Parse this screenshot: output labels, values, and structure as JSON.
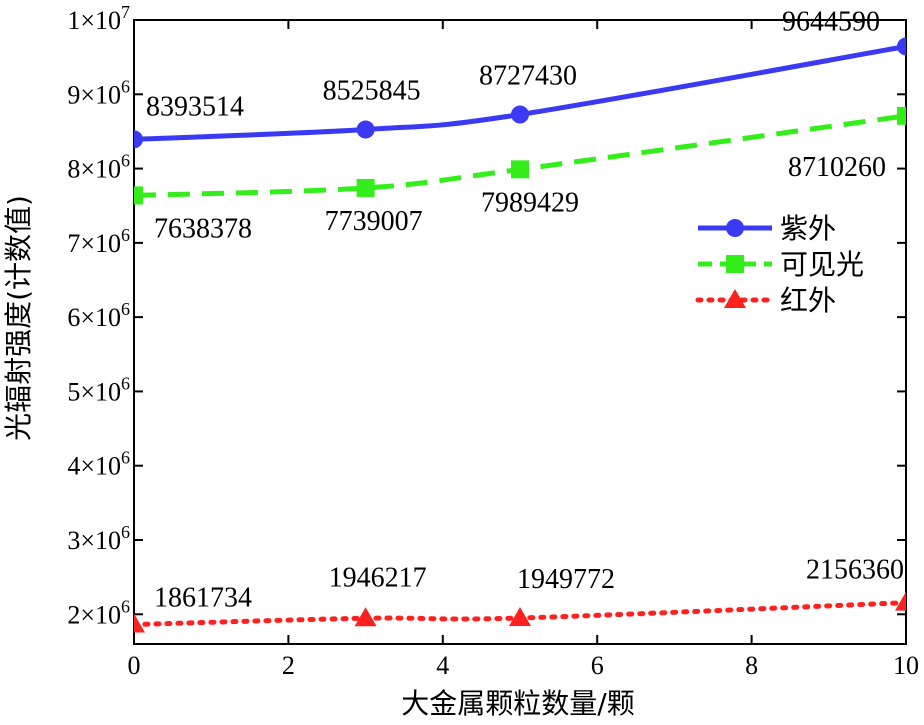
{
  "chart_data": {
    "type": "line",
    "xlabel": "大金属颗粒数量/颗",
    "ylabel": "光辐射强度(计数值)",
    "xlim": [
      0,
      10
    ],
    "ylim": [
      1600000,
      10000000
    ],
    "x_ticks": [
      {
        "value": 0,
        "label": "0"
      },
      {
        "value": 2,
        "label": "2"
      },
      {
        "value": 4,
        "label": "4"
      },
      {
        "value": 6,
        "label": "6"
      },
      {
        "value": 8,
        "label": "8"
      },
      {
        "value": 10,
        "label": "10"
      }
    ],
    "y_ticks": [
      {
        "value": 2000000,
        "base": "2×10",
        "exp": "6"
      },
      {
        "value": 3000000,
        "base": "3×10",
        "exp": "6"
      },
      {
        "value": 4000000,
        "base": "4×10",
        "exp": "6"
      },
      {
        "value": 5000000,
        "base": "5×10",
        "exp": "6"
      },
      {
        "value": 6000000,
        "base": "6×10",
        "exp": "6"
      },
      {
        "value": 7000000,
        "base": "7×10",
        "exp": "6"
      },
      {
        "value": 8000000,
        "base": "8×10",
        "exp": "6"
      },
      {
        "value": 9000000,
        "base": "9×10",
        "exp": "6"
      },
      {
        "value": 10000000,
        "base": "1×10",
        "exp": "7"
      }
    ],
    "x": [
      0,
      3,
      5,
      10
    ],
    "series": [
      {
        "name": "紫外",
        "values": [
          8393514,
          8525845,
          8727430,
          9644590
        ],
        "labels": [
          "8393514",
          "8525845",
          "8727430",
          "9644590"
        ],
        "color": "#3a3af5",
        "line_style": "solid",
        "marker": "circle"
      },
      {
        "name": "可见光",
        "values": [
          7638378,
          7739007,
          7989429,
          8710260
        ],
        "labels": [
          "7638378",
          "7739007",
          "7989429",
          "8710260"
        ],
        "color": "#33ee1a",
        "line_style": "dashed",
        "marker": "square"
      },
      {
        "name": "红外",
        "values": [
          1861734,
          1946217,
          1949772,
          2156360
        ],
        "labels": [
          "1861734",
          "1946217",
          "1949772",
          "2156360"
        ],
        "color": "#ff2020",
        "line_style": "dotted",
        "marker": "triangle"
      }
    ],
    "legend": {
      "position": "right"
    },
    "grid": false
  }
}
